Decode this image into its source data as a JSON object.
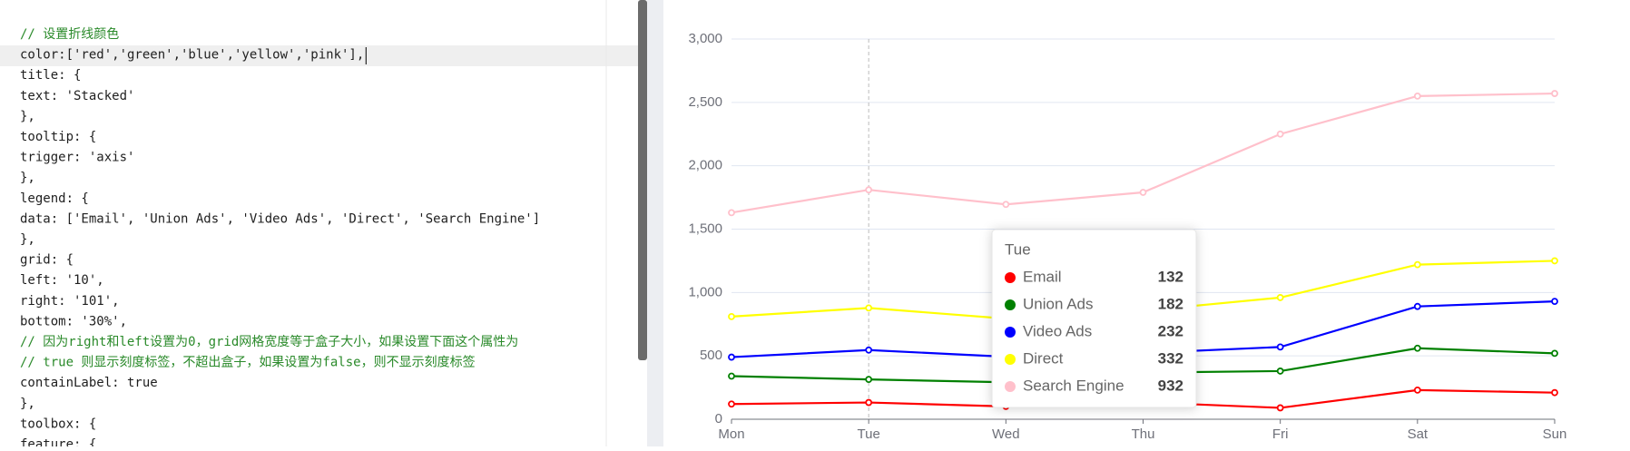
{
  "editor": {
    "lines": [
      "// 设置折线颜色",
      "color:['red','green','blue','yellow','pink'],",
      "title: {",
      "  text: 'Stacked'",
      "},",
      "tooltip: {",
      "  trigger: 'axis'",
      "},",
      "legend: {",
      "  data: ['Email', 'Union Ads', 'Video Ads', 'Direct', 'Search Engine']",
      "},",
      "grid: {",
      "  left: '10',",
      "  right: '101',",
      "  bottom: '30%',",
      "  // 因为right和left设置为0，grid网格宽度等于盒子大小，如果设置下面这个属性为",
      "  // true 则显示刻度标签，不超出盒子，如果设置为false，则不显示刻度标签",
      "  containLabel: true",
      "},",
      "toolbox: {",
      "  feature: {"
    ]
  },
  "chart_data": {
    "type": "line",
    "stacked": true,
    "categories": [
      "Mon",
      "Tue",
      "Wed",
      "Thu",
      "Fri",
      "Sat",
      "Sun"
    ],
    "series": [
      {
        "name": "Email",
        "color": "red",
        "values": [
          120,
          132,
          101,
          134,
          90,
          230,
          210
        ]
      },
      {
        "name": "Union Ads",
        "color": "green",
        "values": [
          220,
          182,
          191,
          234,
          290,
          330,
          310
        ]
      },
      {
        "name": "Video Ads",
        "color": "blue",
        "values": [
          150,
          232,
          201,
          154,
          190,
          330,
          410
        ]
      },
      {
        "name": "Direct",
        "color": "yellow",
        "values": [
          320,
          332,
          301,
          334,
          390,
          330,
          320
        ]
      },
      {
        "name": "Search Engine",
        "color": "pink",
        "values": [
          820,
          932,
          901,
          934,
          1290,
          1330,
          1320
        ]
      }
    ],
    "ylim": [
      0,
      3000
    ],
    "yticks": [
      0,
      500,
      {
        "value": 1000,
        "label": "1,000"
      },
      {
        "value": 1500,
        "label": "1,500"
      },
      {
        "value": 2000,
        "label": "2,000"
      },
      {
        "value": 2500,
        "label": "2,500"
      },
      {
        "value": 3000,
        "label": "3,000"
      }
    ],
    "grid": true,
    "tooltip_index": 1
  }
}
